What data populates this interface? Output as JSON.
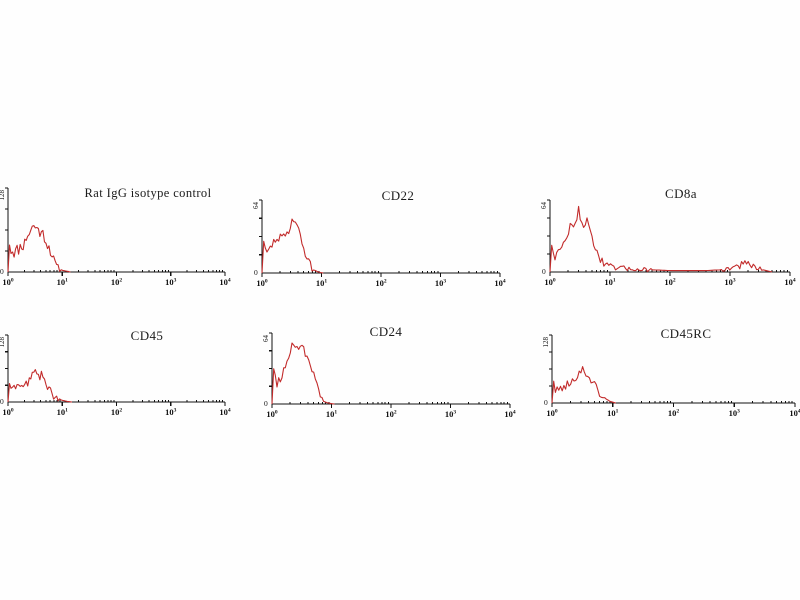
{
  "figure": {
    "background": "#fefefe",
    "curve_color": "#c22b2b",
    "axis_color": "#111111",
    "text_color": "#1c1c1c"
  },
  "chart_data": [
    {
      "type": "area",
      "title": "Rat IgG isotype control",
      "x_scale": "log",
      "xlim_decades": [
        0,
        4
      ],
      "x_tick_base": "10",
      "x_tick_exponents": [
        "0",
        "1",
        "2",
        "3",
        "4"
      ],
      "origin_label": "0",
      "y_max_label": "128",
      "ylim": [
        0,
        128
      ],
      "legend": "none",
      "grid": false,
      "points": [
        [
          0,
          0
        ],
        [
          0.01,
          0.52
        ],
        [
          0.04,
          0.24
        ],
        [
          0.08,
          0.26
        ],
        [
          0.12,
          0.22
        ],
        [
          0.16,
          0.28
        ],
        [
          0.2,
          0.26
        ],
        [
          0.24,
          0.33
        ],
        [
          0.28,
          0.3
        ],
        [
          0.32,
          0.38
        ],
        [
          0.36,
          0.44
        ],
        [
          0.4,
          0.47
        ],
        [
          0.44,
          0.52
        ],
        [
          0.48,
          0.57
        ],
        [
          0.52,
          0.5
        ],
        [
          0.56,
          0.53
        ],
        [
          0.6,
          0.44
        ],
        [
          0.64,
          0.47
        ],
        [
          0.68,
          0.4
        ],
        [
          0.72,
          0.33
        ],
        [
          0.76,
          0.3
        ],
        [
          0.8,
          0.22
        ],
        [
          0.84,
          0.14
        ],
        [
          0.88,
          0.08
        ],
        [
          0.94,
          0.04
        ],
        [
          1.0,
          0.02
        ],
        [
          1.08,
          0.01
        ],
        [
          1.15,
          0
        ]
      ]
    },
    {
      "type": "area",
      "title": "CD22",
      "x_scale": "log",
      "xlim_decades": [
        0,
        4
      ],
      "x_tick_base": "10",
      "x_tick_exponents": [
        "0",
        "1",
        "2",
        "3",
        "4"
      ],
      "origin_label": "0",
      "y_max_label": "64",
      "ylim": [
        0,
        64
      ],
      "legend": "none",
      "grid": false,
      "points": [
        [
          0,
          0
        ],
        [
          0.01,
          0.6
        ],
        [
          0.05,
          0.3
        ],
        [
          0.09,
          0.26
        ],
        [
          0.13,
          0.33
        ],
        [
          0.17,
          0.38
        ],
        [
          0.21,
          0.44
        ],
        [
          0.25,
          0.49
        ],
        [
          0.29,
          0.46
        ],
        [
          0.33,
          0.5
        ],
        [
          0.37,
          0.48
        ],
        [
          0.41,
          0.53
        ],
        [
          0.45,
          0.6
        ],
        [
          0.49,
          0.68
        ],
        [
          0.53,
          0.76
        ],
        [
          0.57,
          0.7
        ],
        [
          0.6,
          0.62
        ],
        [
          0.64,
          0.5
        ],
        [
          0.68,
          0.4
        ],
        [
          0.72,
          0.3
        ],
        [
          0.76,
          0.2
        ],
        [
          0.8,
          0.12
        ],
        [
          0.85,
          0.06
        ],
        [
          0.9,
          0.03
        ],
        [
          0.96,
          0.01
        ],
        [
          1.03,
          0
        ]
      ]
    },
    {
      "type": "area",
      "title": "CD8a",
      "x_scale": "log",
      "xlim_decades": [
        0,
        4
      ],
      "x_tick_base": "10",
      "x_tick_exponents": [
        "0",
        "1",
        "2",
        "3",
        "4"
      ],
      "origin_label": "0",
      "y_max_label": "64",
      "ylim": [
        0,
        64
      ],
      "legend": "none",
      "grid": false,
      "points": [
        [
          0,
          0
        ],
        [
          0.01,
          0.58
        ],
        [
          0.04,
          0.28
        ],
        [
          0.08,
          0.22
        ],
        [
          0.12,
          0.3
        ],
        [
          0.16,
          0.27
        ],
        [
          0.2,
          0.34
        ],
        [
          0.24,
          0.42
        ],
        [
          0.28,
          0.5
        ],
        [
          0.32,
          0.6
        ],
        [
          0.36,
          0.66
        ],
        [
          0.4,
          0.6
        ],
        [
          0.44,
          0.7
        ],
        [
          0.48,
          0.88
        ],
        [
          0.52,
          0.72
        ],
        [
          0.56,
          0.64
        ],
        [
          0.6,
          0.74
        ],
        [
          0.64,
          0.62
        ],
        [
          0.68,
          0.55
        ],
        [
          0.72,
          0.44
        ],
        [
          0.76,
          0.34
        ],
        [
          0.8,
          0.24
        ],
        [
          0.85,
          0.16
        ],
        [
          0.9,
          0.1
        ],
        [
          1.0,
          0.07
        ],
        [
          1.1,
          0.05
        ],
        [
          1.25,
          0.05
        ],
        [
          1.45,
          0.04
        ],
        [
          1.7,
          0.03
        ],
        [
          2.0,
          0.02
        ],
        [
          2.3,
          0.02
        ],
        [
          2.6,
          0.02
        ],
        [
          2.85,
          0.03
        ],
        [
          3.0,
          0.05
        ],
        [
          3.1,
          0.08
        ],
        [
          3.2,
          0.1
        ],
        [
          3.3,
          0.11
        ],
        [
          3.4,
          0.07
        ],
        [
          3.5,
          0.04
        ],
        [
          3.6,
          0.02
        ],
        [
          3.7,
          0
        ]
      ]
    },
    {
      "type": "area",
      "title": "CD45",
      "x_scale": "log",
      "xlim_decades": [
        0,
        4
      ],
      "x_tick_base": "10",
      "x_tick_exponents": [
        "0",
        "1",
        "2",
        "3",
        "4"
      ],
      "origin_label": "0",
      "y_max_label": "128",
      "ylim": [
        0,
        128
      ],
      "legend": "none",
      "grid": false,
      "points": [
        [
          0,
          0
        ],
        [
          0.01,
          0.44
        ],
        [
          0.05,
          0.14
        ],
        [
          0.1,
          0.18
        ],
        [
          0.15,
          0.22
        ],
        [
          0.2,
          0.26
        ],
        [
          0.25,
          0.24
        ],
        [
          0.3,
          0.28
        ],
        [
          0.35,
          0.26
        ],
        [
          0.4,
          0.33
        ],
        [
          0.45,
          0.4
        ],
        [
          0.5,
          0.52
        ],
        [
          0.54,
          0.44
        ],
        [
          0.58,
          0.38
        ],
        [
          0.62,
          0.4
        ],
        [
          0.66,
          0.33
        ],
        [
          0.7,
          0.27
        ],
        [
          0.74,
          0.22
        ],
        [
          0.78,
          0.16
        ],
        [
          0.84,
          0.1
        ],
        [
          0.9,
          0.06
        ],
        [
          0.98,
          0.03
        ],
        [
          1.08,
          0.01
        ],
        [
          1.18,
          0
        ]
      ]
    },
    {
      "type": "area",
      "title": "CD24",
      "x_scale": "log",
      "xlim_decades": [
        0,
        4
      ],
      "x_tick_base": "10",
      "x_tick_exponents": [
        "0",
        "1",
        "2",
        "3",
        "4"
      ],
      "origin_label": "0",
      "y_max_label": "64",
      "ylim": [
        0,
        64
      ],
      "legend": "none",
      "grid": false,
      "points": [
        [
          0,
          0
        ],
        [
          0.01,
          0.68
        ],
        [
          0.04,
          0.42
        ],
        [
          0.07,
          0.28
        ],
        [
          0.11,
          0.33
        ],
        [
          0.15,
          0.38
        ],
        [
          0.19,
          0.44
        ],
        [
          0.23,
          0.52
        ],
        [
          0.27,
          0.62
        ],
        [
          0.31,
          0.74
        ],
        [
          0.35,
          0.84
        ],
        [
          0.39,
          0.76
        ],
        [
          0.43,
          0.84
        ],
        [
          0.47,
          0.78
        ],
        [
          0.51,
          0.82
        ],
        [
          0.55,
          0.74
        ],
        [
          0.59,
          0.7
        ],
        [
          0.63,
          0.6
        ],
        [
          0.67,
          0.48
        ],
        [
          0.71,
          0.36
        ],
        [
          0.75,
          0.26
        ],
        [
          0.79,
          0.16
        ],
        [
          0.84,
          0.08
        ],
        [
          0.89,
          0.03
        ],
        [
          0.96,
          0.01
        ],
        [
          1.05,
          0
        ]
      ]
    },
    {
      "type": "area",
      "title": "CD45RC",
      "x_scale": "log",
      "xlim_decades": [
        0,
        4
      ],
      "x_tick_base": "10",
      "x_tick_exponents": [
        "0",
        "1",
        "2",
        "3",
        "4"
      ],
      "origin_label": "0",
      "y_max_label": "128",
      "ylim": [
        0,
        128
      ],
      "legend": "none",
      "grid": false,
      "points": [
        [
          0,
          0
        ],
        [
          0.01,
          0.5
        ],
        [
          0.05,
          0.16
        ],
        [
          0.1,
          0.19
        ],
        [
          0.15,
          0.23
        ],
        [
          0.2,
          0.21
        ],
        [
          0.25,
          0.28
        ],
        [
          0.3,
          0.25
        ],
        [
          0.35,
          0.33
        ],
        [
          0.4,
          0.4
        ],
        [
          0.45,
          0.46
        ],
        [
          0.5,
          0.5
        ],
        [
          0.54,
          0.44
        ],
        [
          0.58,
          0.42
        ],
        [
          0.62,
          0.38
        ],
        [
          0.66,
          0.32
        ],
        [
          0.7,
          0.27
        ],
        [
          0.74,
          0.21
        ],
        [
          0.79,
          0.14
        ],
        [
          0.84,
          0.08
        ],
        [
          0.9,
          0.04
        ],
        [
          0.97,
          0.02
        ],
        [
          1.05,
          0
        ]
      ]
    }
  ]
}
